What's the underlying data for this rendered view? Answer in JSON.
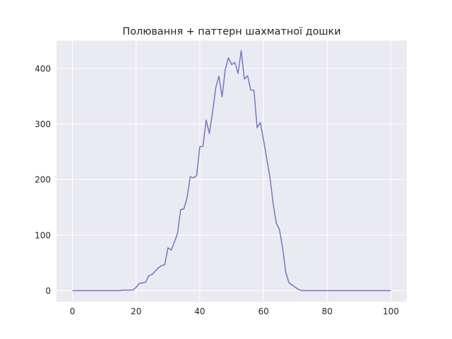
{
  "chart_data": {
    "type": "line",
    "title": "Полювання + паттерн шахматної дошки",
    "xlabel": "",
    "ylabel": "",
    "xlim": [
      -5,
      105
    ],
    "ylim": [
      -20,
      450
    ],
    "xticks": [
      0,
      20,
      40,
      60,
      80,
      100
    ],
    "yticks": [
      0,
      100,
      200,
      300,
      400
    ],
    "grid": true,
    "line_color": "#7B74C0",
    "background_color": "#EAEAF2",
    "series": [
      {
        "x": [
          0,
          1,
          2,
          3,
          4,
          5,
          6,
          7,
          8,
          9,
          10,
          11,
          12,
          13,
          14,
          15,
          16,
          17,
          18,
          19,
          20,
          21,
          22,
          23,
          24,
          25,
          26,
          27,
          28,
          29,
          30,
          31,
          32,
          33,
          34,
          35,
          36,
          37,
          38,
          39,
          40,
          41,
          42,
          43,
          44,
          45,
          46,
          47,
          48,
          49,
          50,
          51,
          52,
          53,
          54,
          55,
          56,
          57,
          58,
          59,
          60,
          61,
          62,
          63,
          64,
          65,
          66,
          67,
          68,
          69,
          70,
          71,
          72,
          73,
          74,
          75,
          76,
          77,
          78,
          79,
          80,
          81,
          82,
          83,
          84,
          85,
          86,
          87,
          88,
          89,
          90,
          91,
          92,
          93,
          94,
          95,
          96,
          97,
          98,
          99,
          100
        ],
        "values": [
          0,
          0,
          0,
          0,
          0,
          0,
          0,
          0,
          0,
          0,
          0,
          0,
          0,
          0,
          0,
          0,
          1,
          1,
          1,
          1,
          6,
          13,
          14,
          15,
          27,
          29,
          35,
          41,
          45,
          47,
          77,
          73,
          87,
          103,
          146,
          147,
          167,
          205,
          203,
          207,
          259,
          260,
          307,
          283,
          321,
          365,
          386,
          349,
          398,
          419,
          407,
          411,
          391,
          432,
          381,
          387,
          361,
          361,
          293,
          303,
          272,
          238,
          205,
          158,
          122,
          110,
          77,
          33,
          14,
          10,
          6,
          2,
          0,
          0,
          0,
          0,
          0,
          0,
          0,
          0,
          0,
          0,
          0,
          0,
          0,
          0,
          0,
          0,
          0,
          0,
          0,
          0,
          0,
          0,
          0,
          0,
          0,
          0,
          0,
          0,
          0
        ]
      }
    ]
  }
}
